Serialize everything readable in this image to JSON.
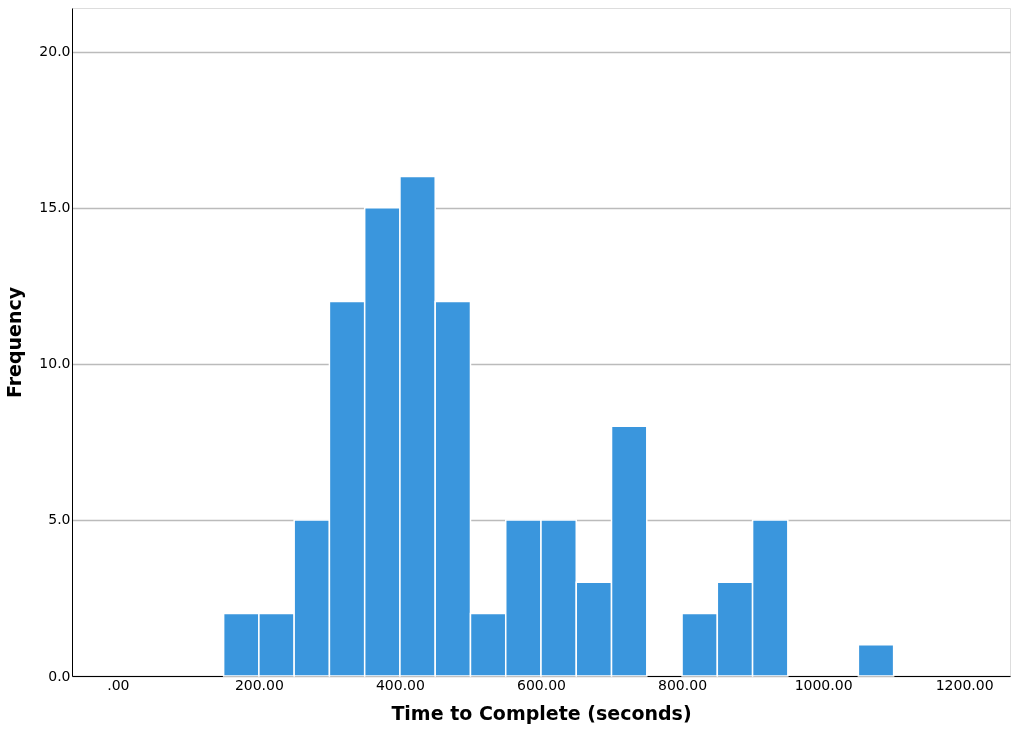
{
  "chart_data": {
    "type": "histogram",
    "xlabel": "Time to Complete (seconds)",
    "ylabel": "Frequency",
    "bins": [
      150,
      200,
      250,
      300,
      350,
      400,
      450,
      500,
      550,
      600,
      650,
      700,
      750,
      800,
      850,
      900,
      950,
      1000,
      1050,
      1100
    ],
    "values": [
      2,
      2,
      5,
      12,
      15,
      16,
      12,
      2,
      5,
      5,
      3,
      8,
      0,
      2,
      3,
      5,
      0,
      0,
      1
    ],
    "color": "#3a96dd",
    "xlim": [
      -65,
      1265
    ],
    "xticks": [
      {
        "value": 0,
        "label": ".00"
      },
      {
        "value": 200,
        "label": "200.00"
      },
      {
        "value": 400,
        "label": "400.00"
      },
      {
        "value": 600,
        "label": "600.00"
      },
      {
        "value": 800,
        "label": "800.00"
      },
      {
        "value": 1000,
        "label": "1000.00"
      },
      {
        "value": 1200,
        "label": "1200.00"
      }
    ],
    "ylim": [
      0,
      21.4
    ],
    "yticks": [
      {
        "value": 0,
        "label": "0.0"
      },
      {
        "value": 5,
        "label": "5.0"
      },
      {
        "value": 10,
        "label": "10.0"
      },
      {
        "value": 15,
        "label": "15.0"
      },
      {
        "value": 20,
        "label": "20.0"
      }
    ],
    "grid": "y"
  }
}
